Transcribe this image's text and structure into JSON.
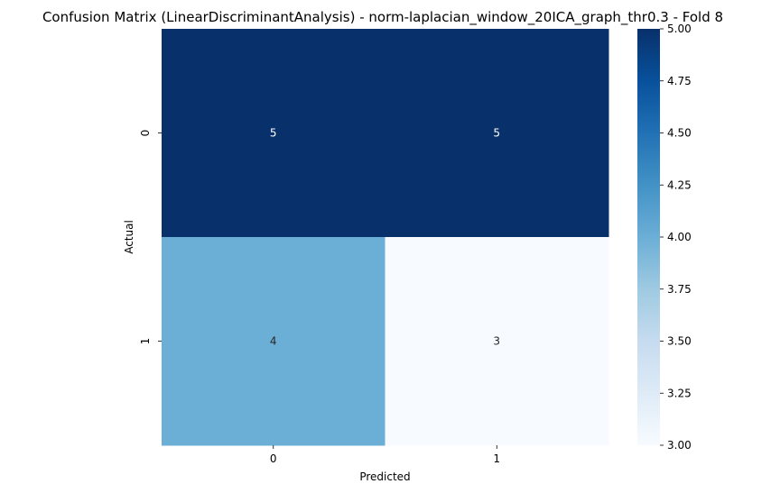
{
  "chart_data": {
    "type": "heatmap",
    "title": "Confusion Matrix (LinearDiscriminantAnalysis) - norm-laplacian_window_20ICA_graph_thr0.3 - Fold 8",
    "xlabel": "Predicted",
    "ylabel": "Actual",
    "x_categories": [
      "0",
      "1"
    ],
    "y_categories": [
      "0",
      "1"
    ],
    "values": [
      [
        5,
        5
      ],
      [
        4,
        3
      ]
    ],
    "colormap": "Blues",
    "colorbar": {
      "min": 3.0,
      "max": 5.0,
      "ticks": [
        "3.00",
        "3.25",
        "3.50",
        "3.75",
        "4.00",
        "4.25",
        "4.50",
        "4.75",
        "5.00"
      ],
      "tick_values": [
        3.0,
        3.25,
        3.5,
        3.75,
        4.0,
        4.25,
        4.5,
        4.75,
        5.0
      ]
    },
    "colors": {
      "low": "#f7fbff",
      "mid": "#6baed6",
      "high": "#08306b"
    },
    "annotate": true
  }
}
